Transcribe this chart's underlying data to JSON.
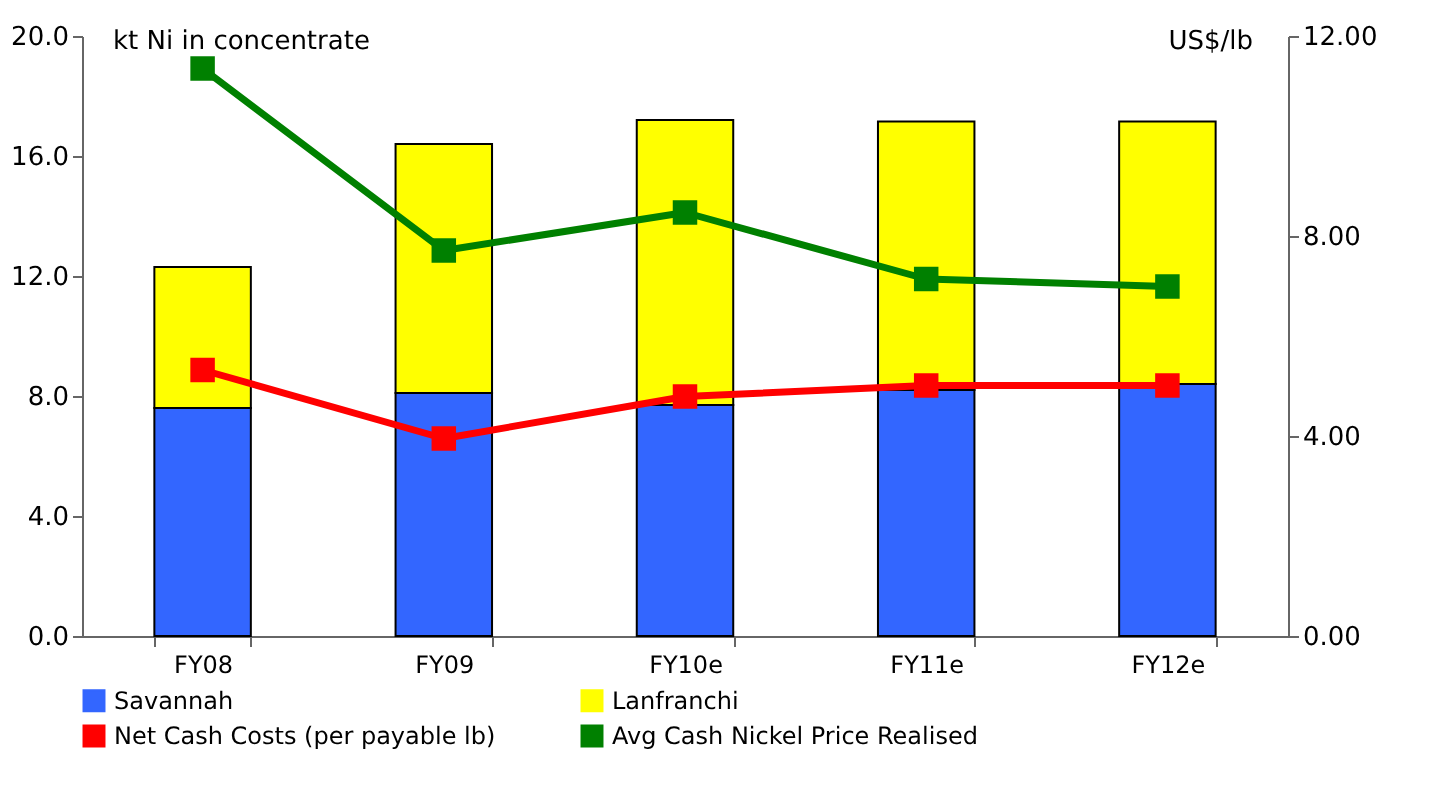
{
  "chart_data": {
    "type": "bar",
    "stacked": true,
    "ylabel": "kt Ni in concentrate",
    "y2label": "US$/lb",
    "categories": [
      "FY08",
      "FY09",
      "FY10e",
      "FY11e",
      "FY12e"
    ],
    "series": [
      {
        "name": "Savannah",
        "color": "#3366ff",
        "values": [
          7.6,
          8.1,
          7.7,
          8.2,
          8.4
        ]
      },
      {
        "name": "Lanfranchi",
        "color": "#ffff00",
        "values": [
          4.7,
          8.3,
          9.5,
          8.95,
          8.75
        ]
      },
      {
        "name": "Net Cash Costs (per payable lb)",
        "type": "line",
        "axis": "y2",
        "color": "#ff0000",
        "values": [
          5.32,
          3.95,
          4.79,
          5.01,
          5.01
        ]
      },
      {
        "name": "Avg Cash Nickel Price Realised",
        "type": "line",
        "axis": "y2",
        "color": "#008000",
        "values": [
          11.35,
          7.71,
          8.47,
          7.14,
          6.99
        ]
      }
    ],
    "ylim": [
      0,
      20
    ],
    "yticks": [
      {
        "value": 0,
        "label": "0.0"
      },
      {
        "value": 4,
        "label": "4.0"
      },
      {
        "value": 8,
        "label": "8.0"
      },
      {
        "value": 12,
        "label": "12.0"
      },
      {
        "value": 16,
        "label": "16.0"
      },
      {
        "value": 20,
        "label": "20.0"
      }
    ],
    "y2lim": [
      0,
      12
    ],
    "y2ticks": [
      {
        "value": 0,
        "label": "0.00"
      },
      {
        "value": 4,
        "label": "4.00"
      },
      {
        "value": 8,
        "label": "8.00"
      },
      {
        "value": 12,
        "label": "12.00"
      }
    ],
    "grid": false,
    "legend": "bottom",
    "marker": "square",
    "line_style": "solid"
  }
}
